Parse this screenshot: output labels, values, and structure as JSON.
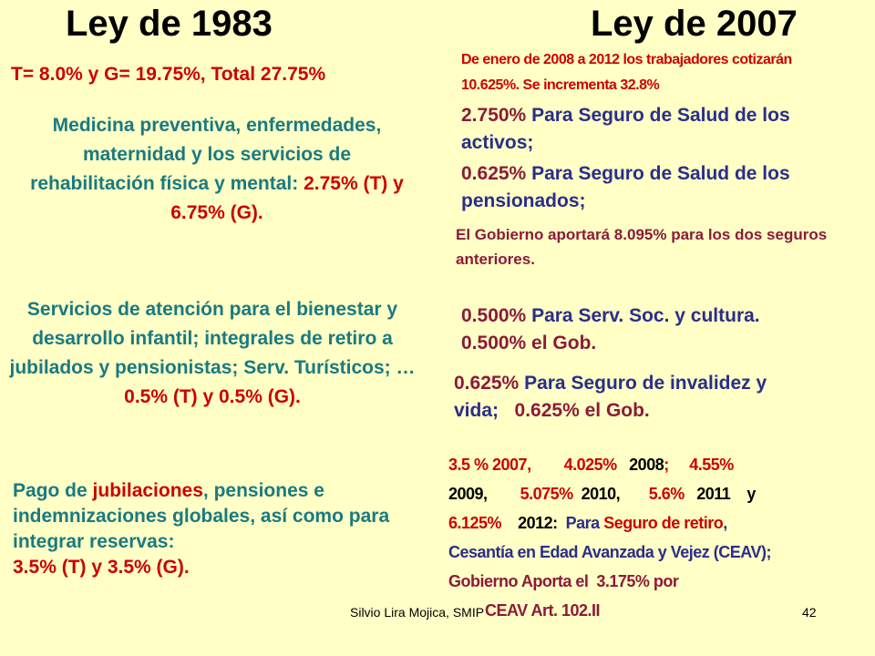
{
  "titles": {
    "left": "Ley de 1983",
    "right": "Ley de 2007"
  },
  "left": {
    "total": "T= 8.0% y G= 19.75%, Total 27.75%",
    "block1_text": "Medicina preventiva, enfermedades, maternidad y los servicios de rehabilitación física y mental: ",
    "block1_rate": "2.75% (T) y 6.75% (G).",
    "block2_text": "Servicios de atención para el bienestar y desarrollo infantil; integrales de retiro a jubilados y pensionistas; Serv. Turísticos; …",
    "block2_rate": "0.5% (T) y 0.5% (G).",
    "block3_a": "Pago de ",
    "block3_b": "jubilaciones",
    "block3_c": ", pensiones e indemnizaciones globales, así como para integrar reservas:",
    "block3_rate": "3.5% (T) y 3.5% (G)."
  },
  "right": {
    "intro": "De enero de 2008 a 2012 los trabajadores cotizarán 10.625%. Se incrementa 32.8%",
    "activos_rate": "2.750%",
    "activos_text": " Para Seguro de Salud de los activos;",
    "pens_rate": "0.625%",
    "pens_text": " Para Seguro de Salud de los pensionados;",
    "gob_salud": "El Gobierno aportará 8.095% para los dos seguros anteriores.",
    "cultura_rate": "0.500%",
    "cultura_text": " Para Serv. Soc. y cultura.",
    "cultura_gob": "0.500% el Gob.",
    "invalidez_rate": "0.625%",
    "invalidez_text": " Para Seguro de invalidez y vida;",
    "invalidez_gob": "0.625% el Gob.",
    "r1": "3.5 % 2007,",
    "r2": "4.025%",
    "r3": "2008",
    "r4": ";",
    "r5": "4.55%",
    "r6": "2009,",
    "r7": "5.075%",
    "r8": "2010,",
    "r9": "5.6%",
    "r10": "2011",
    "r11": "y",
    "r12": "6.125%",
    "r13": "2012",
    "r14": ":",
    "r15": "Para",
    "r16": "Seguro de retiro",
    "r17": ",",
    "r18": "Cesantía en Edad Avanzada y Vejez (CEAV);",
    "r19": "Gobierno Aporta el",
    "r20": "3.175% por",
    "r21": "CEAV Art. 102.II"
  },
  "footer": {
    "author": "Silvio Lira Mojica, SMIP",
    "page": "42"
  }
}
